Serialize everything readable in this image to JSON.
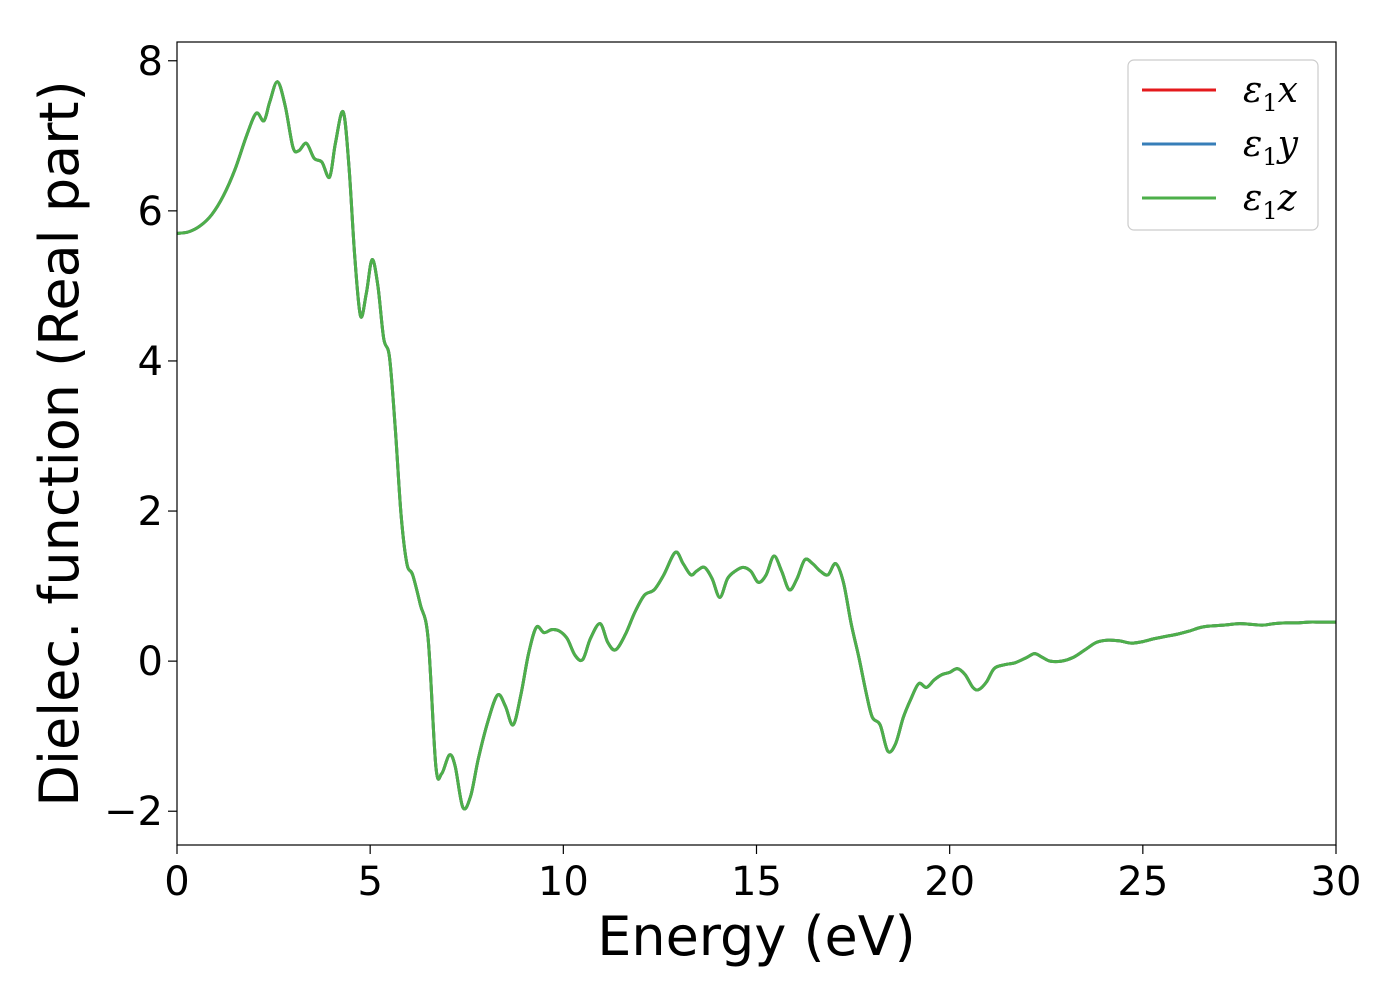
{
  "chart_data": {
    "type": "line",
    "title": "",
    "xlabel": "Energy (eV)",
    "ylabel": "Dielec. function (Real part)",
    "xlim": [
      0,
      30
    ],
    "ylim": [
      -2.45,
      8.25
    ],
    "xticks": [
      0,
      5,
      10,
      15,
      20,
      25,
      30
    ],
    "xtick_labels": [
      "0",
      "5",
      "10",
      "15",
      "20",
      "25",
      "30"
    ],
    "yticks": [
      -2,
      0,
      2,
      4,
      6,
      8
    ],
    "ytick_labels": [
      "−2",
      "0",
      "2",
      "4",
      "6",
      "8"
    ],
    "grid": false,
    "legend": {
      "position": "top-right",
      "entries": [
        {
          "symbol": "ε",
          "subscript": "1",
          "suffix": "x",
          "color": "#e41a1c"
        },
        {
          "symbol": "ε",
          "subscript": "1",
          "suffix": "y",
          "color": "#377eb8"
        },
        {
          "symbol": "ε",
          "subscript": "1",
          "suffix": "z",
          "color": "#4daf4a"
        }
      ]
    },
    "x": [
      0,
      0.3,
      0.6,
      0.9,
      1.2,
      1.5,
      1.8,
      2.05,
      2.25,
      2.4,
      2.6,
      2.8,
      3.0,
      3.15,
      3.35,
      3.55,
      3.75,
      3.95,
      4.1,
      4.3,
      4.45,
      4.6,
      4.75,
      4.9,
      5.05,
      5.2,
      5.35,
      5.5,
      5.65,
      5.8,
      5.95,
      6.1,
      6.3,
      6.5,
      6.7,
      6.85,
      7.05,
      7.2,
      7.4,
      7.6,
      7.8,
      8.05,
      8.3,
      8.5,
      8.7,
      8.9,
      9.1,
      9.3,
      9.5,
      9.7,
      9.9,
      10.1,
      10.3,
      10.5,
      10.7,
      10.95,
      11.15,
      11.35,
      11.6,
      11.85,
      12.1,
      12.35,
      12.6,
      12.9,
      13.1,
      13.3,
      13.45,
      13.65,
      13.85,
      14.05,
      14.25,
      14.45,
      14.65,
      14.85,
      15.05,
      15.25,
      15.45,
      15.65,
      15.85,
      16.05,
      16.25,
      16.45,
      16.65,
      16.85,
      17.05,
      17.25,
      17.45,
      17.65,
      17.85,
      18.0,
      18.2,
      18.4,
      18.6,
      18.8,
      19.0,
      19.2,
      19.4,
      19.6,
      19.8,
      20.0,
      20.2,
      20.4,
      20.6,
      20.75,
      20.95,
      21.15,
      21.4,
      21.7,
      22.0,
      22.2,
      22.4,
      22.6,
      22.9,
      23.2,
      23.5,
      23.8,
      24.1,
      24.4,
      24.7,
      25.0,
      25.3,
      25.6,
      25.9,
      26.2,
      26.5,
      26.8,
      27.1,
      27.5,
      27.8,
      28.1,
      28.4,
      28.7,
      29.0,
      29.3,
      29.6,
      30.0
    ],
    "series": [
      {
        "values": [
          5.7,
          5.72,
          5.8,
          5.95,
          6.2,
          6.55,
          7.0,
          7.3,
          7.2,
          7.45,
          7.72,
          7.4,
          6.85,
          6.8,
          6.9,
          6.7,
          6.65,
          6.45,
          6.9,
          7.32,
          6.6,
          5.4,
          4.6,
          4.9,
          5.35,
          5.0,
          4.3,
          4.05,
          3.1,
          1.95,
          1.3,
          1.15,
          0.75,
          0.3,
          -1.4,
          -1.5,
          -1.25,
          -1.4,
          -1.95,
          -1.8,
          -1.3,
          -0.8,
          -0.45,
          -0.6,
          -0.85,
          -0.45,
          0.1,
          0.45,
          0.38,
          0.42,
          0.4,
          0.3,
          0.08,
          0.02,
          0.3,
          0.5,
          0.25,
          0.15,
          0.35,
          0.65,
          0.88,
          0.95,
          1.15,
          1.45,
          1.3,
          1.15,
          1.2,
          1.25,
          1.1,
          0.85,
          1.1,
          1.2,
          1.25,
          1.2,
          1.05,
          1.15,
          1.4,
          1.2,
          0.95,
          1.1,
          1.35,
          1.3,
          1.2,
          1.15,
          1.3,
          1.05,
          0.5,
          0.05,
          -0.45,
          -0.75,
          -0.85,
          -1.2,
          -1.1,
          -0.75,
          -0.5,
          -0.3,
          -0.35,
          -0.25,
          -0.18,
          -0.15,
          -0.1,
          -0.18,
          -0.35,
          -0.38,
          -0.28,
          -0.1,
          -0.05,
          -0.02,
          0.05,
          0.1,
          0.05,
          0.0,
          0.0,
          0.05,
          0.15,
          0.25,
          0.28,
          0.27,
          0.24,
          0.26,
          0.3,
          0.33,
          0.36,
          0.4,
          0.45,
          0.47,
          0.48,
          0.5,
          0.49,
          0.48,
          0.5,
          0.51,
          0.51,
          0.52,
          0.52,
          0.52
        ]
      }
    ]
  }
}
